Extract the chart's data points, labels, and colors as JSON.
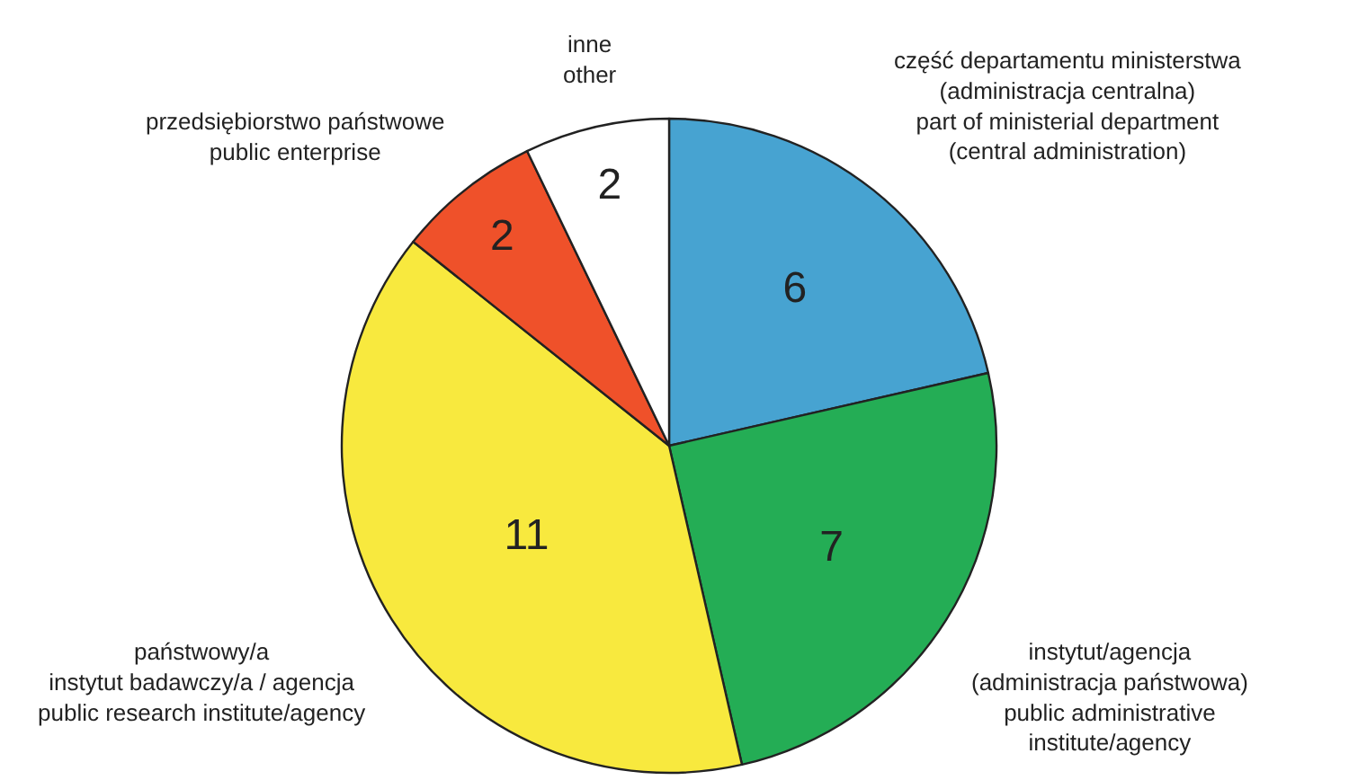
{
  "chart_data": {
    "type": "pie",
    "categories": [
      "część departamentu ministerstwa\n(administracja centralna)\npart of ministerial department\n(central administration)",
      "instytut/agencja\n(administracja państwowa)\npublic administrative\ninstitute/agency",
      "państwowy/a\ninstytut badawczy/a / agencja\npublic research institute/agency",
      "przedsiębiorstwo państwowe\npublic enterprise",
      "inne\nother"
    ],
    "values": [
      6,
      7,
      11,
      2,
      2
    ],
    "colors": [
      "#47a3d1",
      "#24ad55",
      "#f8e93e",
      "#ef512a",
      "#ffffff"
    ],
    "data_labels": true
  }
}
